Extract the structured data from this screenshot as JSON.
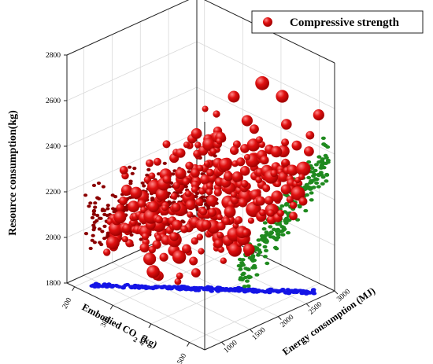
{
  "chart_data": {
    "type": "scatter",
    "title": "",
    "legend": {
      "label": "Compressive strength",
      "placement": "top-right",
      "marker_color": "#e01010"
    },
    "x_axis": {
      "label_prefix": "Embodied CO",
      "label_sub": "2",
      "label_suffix": " (kg)",
      "range": [
        180,
        540
      ],
      "ticks": [
        200,
        300,
        400,
        500
      ]
    },
    "y_axis": {
      "label": "Energy consumption (MJ)",
      "range": [
        700,
        3000
      ],
      "ticks": [
        1000,
        1500,
        2000,
        2500,
        3000
      ]
    },
    "z_axis": {
      "label": "Resource consumption(kg)",
      "range": [
        1800,
        2800
      ],
      "ticks": [
        1800,
        2000,
        2200,
        2400,
        2600,
        2800
      ]
    },
    "grid": true,
    "series": [
      {
        "name": "Compressive strength",
        "color": "#e01010",
        "description_of_distribution": "main bubble cloud; bubble size varies",
        "points": [
          [
            240,
            1000,
            1950,
            0.9
          ],
          [
            250,
            1050,
            2100,
            1.3
          ],
          [
            260,
            1100,
            2150,
            1.0
          ],
          [
            270,
            1150,
            2230,
            1.6
          ],
          [
            255,
            1200,
            2300,
            1.1
          ],
          [
            275,
            1250,
            2050,
            0.8
          ],
          [
            290,
            1300,
            2200,
            1.7
          ],
          [
            300,
            1350,
            2350,
            1.0
          ],
          [
            310,
            1400,
            2150,
            1.4
          ],
          [
            280,
            1450,
            2250,
            0.9
          ],
          [
            320,
            1500,
            2300,
            1.8
          ],
          [
            330,
            1550,
            2100,
            1.1
          ],
          [
            340,
            1600,
            2250,
            1.5
          ],
          [
            300,
            1650,
            2400,
            1.0
          ],
          [
            350,
            1700,
            2200,
            1.9
          ],
          [
            360,
            1750,
            2330,
            1.2
          ],
          [
            370,
            1800,
            2150,
            0.9
          ],
          [
            380,
            1850,
            2280,
            1.6
          ],
          [
            330,
            1900,
            2420,
            1.3
          ],
          [
            390,
            1950,
            2250,
            1.0
          ],
          [
            400,
            2000,
            2350,
            1.8
          ],
          [
            410,
            2050,
            2180,
            1.1
          ],
          [
            420,
            2100,
            2300,
            1.5
          ],
          [
            360,
            2150,
            2450,
            1.2
          ],
          [
            430,
            2200,
            2260,
            0.9
          ],
          [
            440,
            2250,
            2380,
            2.0
          ],
          [
            450,
            2300,
            2200,
            1.3
          ],
          [
            460,
            2350,
            2320,
            1.0
          ],
          [
            400,
            2400,
            2500,
            1.6
          ],
          [
            470,
            2450,
            2280,
            1.2
          ],
          [
            480,
            2500,
            2420,
            1.8
          ],
          [
            490,
            2550,
            2300,
            1.0
          ],
          [
            500,
            2600,
            2450,
            1.4
          ],
          [
            510,
            2650,
            2350,
            2.2
          ],
          [
            520,
            2700,
            2500,
            1.1
          ],
          [
            440,
            2750,
            2600,
            1.9
          ],
          [
            265,
            950,
            2000,
            1.2
          ],
          [
            285,
            1020,
            2320,
            0.9
          ],
          [
            305,
            1180,
            2080,
            1.3
          ],
          [
            325,
            1320,
            2380,
            1.0
          ],
          [
            345,
            1480,
            2050,
            1.2
          ],
          [
            365,
            1620,
            2450,
            0.9
          ],
          [
            385,
            1780,
            2100,
            1.4
          ],
          [
            405,
            1920,
            2480,
            1.1
          ],
          [
            425,
            2080,
            2120,
            1.0
          ],
          [
            445,
            2220,
            2520,
            1.3
          ],
          [
            465,
            2380,
            2150,
            0.9
          ],
          [
            485,
            2520,
            2540,
            1.5
          ],
          [
            505,
            2680,
            2200,
            1.1
          ],
          [
            525,
            2820,
            2580,
            1.6
          ],
          [
            410,
            2600,
            2650,
            2.1
          ],
          [
            380,
            2300,
            2600,
            1.7
          ]
        ]
      },
      {
        "name": "",
        "color": "#8b0000",
        "description_of_distribution": "dark red points, low energy / high resource"
      },
      {
        "name": "",
        "color": "#1f8a1f",
        "description_of_distribution": "green points on back (high energy) wall"
      },
      {
        "name": "",
        "color": "#1414e6",
        "description_of_distribution": "blue points projected on floor (z = 1800)"
      }
    ]
  }
}
